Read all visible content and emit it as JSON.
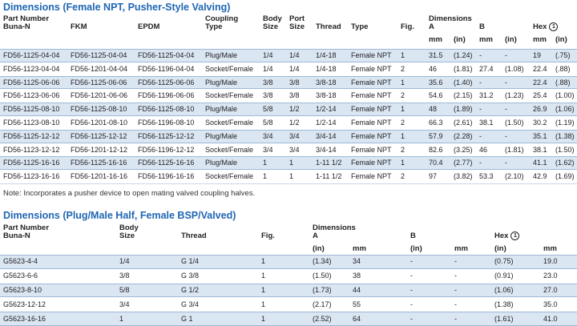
{
  "sections": [
    {
      "title": "Dimensions (Female NPT, Pusher-Style Valving)",
      "columns": [
        [
          "Part Number",
          "Buna-N"
        ],
        [
          "FKM"
        ],
        [
          "EPDM"
        ],
        [
          "Coupling",
          "Type"
        ],
        [
          "Body",
          "Size"
        ],
        [
          "Port",
          "Size"
        ],
        [
          "Thread"
        ],
        [
          "Type"
        ],
        [
          "Fig."
        ]
      ],
      "dimensions": {
        "label": "Dimensions",
        "groups": [
          {
            "name": "A",
            "units": [
              "mm",
              "(in)"
            ]
          },
          {
            "name": "B",
            "units": [
              "mm",
              "(in)"
            ]
          },
          {
            "name": "Hex",
            "note_ref": "1",
            "units": [
              "mm",
              "(in)"
            ]
          }
        ]
      },
      "rows": [
        [
          "FD56-1125-04-04",
          "FD56-1125-04-04",
          "FD56-1125-04-04",
          "Plug/Male",
          "1/4",
          "1/4",
          "1/4-18",
          "Female NPT",
          "1",
          "31.5",
          "(1.24)",
          "-",
          "-",
          "19",
          "(.75)"
        ],
        [
          "FD56-1123-04-04",
          "FD56-1201-04-04",
          "FD56-1196-04-04",
          "Socket/Female",
          "1/4",
          "1/4",
          "1/4-18",
          "Female NPT",
          "2",
          "46",
          "(1.81)",
          "27.4",
          "(1.08)",
          "22.4",
          "(.88)"
        ],
        [
          "FD56-1125-06-06",
          "FD56-1125-06-06",
          "FD56-1125-06-06",
          "Plug/Male",
          "3/8",
          "3/8",
          "3/8-18",
          "Female NPT",
          "1",
          "35.6",
          "(1.40)",
          "-",
          "-",
          "22.4",
          "(.88)"
        ],
        [
          "FD56-1123-06-06",
          "FD56-1201-06-06",
          "FD56-1196-06-06",
          "Socket/Female",
          "3/8",
          "3/8",
          "3/8-18",
          "Female NPT",
          "2",
          "54.6",
          "(2.15)",
          "31.2",
          "(1.23)",
          "25.4",
          "(1.00)"
        ],
        [
          "FD56-1125-08-10",
          "FD56-1125-08-10",
          "FD56-1125-08-10",
          "Plug/Male",
          "5/8",
          "1/2",
          "1/2-14",
          "Female NPT",
          "1",
          "48",
          "(1.89)",
          "-",
          "-",
          "26.9",
          "(1.06)"
        ],
        [
          "FD56-1123-08-10",
          "FD56-1201-08-10",
          "FD56-1196-08-10",
          "Socket/Female",
          "5/8",
          "1/2",
          "1/2-14",
          "Female NPT",
          "2",
          "66.3",
          "(2.61)",
          "38.1",
          "(1.50)",
          "30.2",
          "(1.19)"
        ],
        [
          "FD56-1125-12-12",
          "FD56-1125-12-12",
          "FD56-1125-12-12",
          "Plug/Male",
          "3/4",
          "3/4",
          "3/4-14",
          "Female NPT",
          "1",
          "57.9",
          "(2.28)",
          "-",
          "-",
          "35.1",
          "(1.38)"
        ],
        [
          "FD56-1123-12-12",
          "FD56-1201-12-12",
          "FD56-1196-12-12",
          "Socket/Female",
          "3/4",
          "3/4",
          "3/4-14",
          "Female NPT",
          "2",
          "82.6",
          "(3.25)",
          "46",
          "(1.81)",
          "38.1",
          "(1.50)"
        ],
        [
          "FD56-1125-16-16",
          "FD56-1125-16-16",
          "FD56-1125-16-16",
          "Plug/Male",
          "1",
          "1",
          "1-11 1/2",
          "Female NPT",
          "1",
          "70.4",
          "(2.77)",
          "-",
          "-",
          "41.1",
          "(1.62)"
        ],
        [
          "FD56-1123-16-16",
          "FD56-1201-16-16",
          "FD56-1196-16-16",
          "Socket/Female",
          "1",
          "1",
          "1-11 1/2",
          "Female NPT",
          "2",
          "97",
          "(3.82)",
          "53.3",
          "(2.10)",
          "42.9",
          "(1.69)"
        ]
      ],
      "note": "Note: Incorporates a pusher device to open mating valved coupling halves."
    },
    {
      "title": "Dimensions (Plug/Male Half, Female BSP/Valved)",
      "columns": [
        [
          "Part Number",
          "Buna-N"
        ],
        [
          "Body",
          "Size"
        ],
        [
          "Thread"
        ],
        [
          "Fig."
        ]
      ],
      "dimensions": {
        "label": "Dimensions",
        "groups": [
          {
            "name": "A",
            "units": [
              "(in)",
              "mm"
            ]
          },
          {
            "name": "B",
            "units": [
              "(in)",
              "mm"
            ]
          },
          {
            "name": "Hex",
            "note_ref": "1",
            "units": [
              "(in)",
              "mm"
            ]
          }
        ]
      },
      "rows": [
        [
          "G5623-4-4",
          "1/4",
          "G 1/4",
          "1",
          "(1.34)",
          "34",
          "-",
          "-",
          "(0.75)",
          "19.0"
        ],
        [
          "G5623-6-6",
          "3/8",
          "G 3/8",
          "1",
          "(1.50)",
          "38",
          "-",
          "-",
          "(0.91)",
          "23.0"
        ],
        [
          "G5623-8-10",
          "5/8",
          "G 1/2",
          "1",
          "(1.73)",
          "44",
          "-",
          "-",
          "(1.06)",
          "27.0"
        ],
        [
          "G5623-12-12",
          "3/4",
          "G 3/4",
          "1",
          "(2.17)",
          "55",
          "-",
          "-",
          "(1.38)",
          "35.0"
        ],
        [
          "G5623-16-16",
          "1",
          "G 1",
          "1",
          "(2.52)",
          "64",
          "-",
          "-",
          "(1.61)",
          "41.0"
        ]
      ]
    }
  ]
}
